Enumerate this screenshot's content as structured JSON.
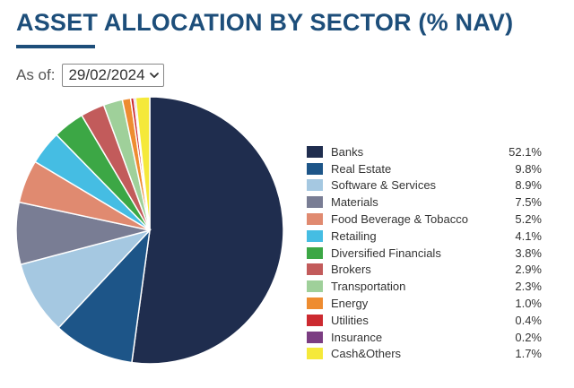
{
  "title": "ASSET ALLOCATION BY SECTOR (% NAV)",
  "as_of": {
    "label": "As of:",
    "selected_date": "29/02/2024"
  },
  "colors": {
    "title": "#1d4e7a"
  },
  "chart_data": {
    "type": "pie",
    "title": "ASSET ALLOCATION BY SECTOR (% NAV)",
    "legend_position": "right",
    "slices": [
      {
        "name": "Banks",
        "value": 52.1,
        "label": "52.1%",
        "color": "#1f2d4e"
      },
      {
        "name": "Real Estate",
        "value": 9.8,
        "label": "9.8%",
        "color": "#1d5588"
      },
      {
        "name": "Software & Services",
        "value": 8.9,
        "label": "8.9%",
        "color": "#a5c8e1"
      },
      {
        "name": "Materials",
        "value": 7.5,
        "label": "7.5%",
        "color": "#797d94"
      },
      {
        "name": "Food Beverage & Tobacco",
        "value": 5.2,
        "label": "5.2%",
        "color": "#e08a70"
      },
      {
        "name": "Retailing",
        "value": 4.1,
        "label": "4.1%",
        "color": "#45bde3"
      },
      {
        "name": "Diversified Financials",
        "value": 3.8,
        "label": "3.8%",
        "color": "#3ca745"
      },
      {
        "name": "Brokers",
        "value": 2.9,
        "label": "2.9%",
        "color": "#c25b5b"
      },
      {
        "name": "Transportation",
        "value": 2.3,
        "label": "2.3%",
        "color": "#9fd09a"
      },
      {
        "name": "Energy",
        "value": 1.0,
        "label": "1.0%",
        "color": "#ee8c30"
      },
      {
        "name": "Utilities",
        "value": 0.4,
        "label": "0.4%",
        "color": "#cc2a30"
      },
      {
        "name": "Insurance",
        "value": 0.2,
        "label": "0.2%",
        "color": "#7b3d82"
      },
      {
        "name": "Cash&Others",
        "value": 1.7,
        "label": "1.7%",
        "color": "#f5e93a"
      }
    ]
  }
}
